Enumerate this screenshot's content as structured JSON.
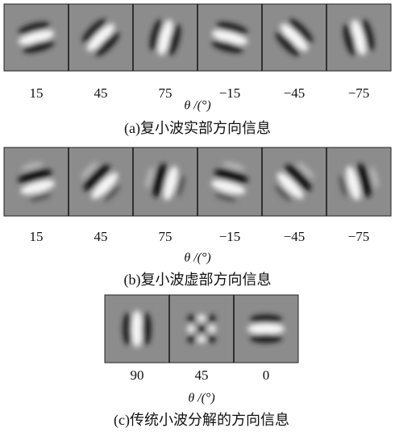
{
  "panels": [
    {
      "labels": [
        "15",
        "45",
        "75",
        "−15",
        "−45",
        "−75"
      ],
      "axis_label": "θ /(°)",
      "caption": "(a)复小波实部方向信息"
    },
    {
      "labels": [
        "15",
        "45",
        "75",
        "−15",
        "−45",
        "−75"
      ],
      "axis_label": "θ /(°)",
      "caption": "(b)复小波虚部方向信息"
    },
    {
      "labels": [
        "90",
        "45",
        "0"
      ],
      "axis_label": "θ /(°)",
      "caption": "(c)传统小波分解的方向信息"
    }
  ]
}
